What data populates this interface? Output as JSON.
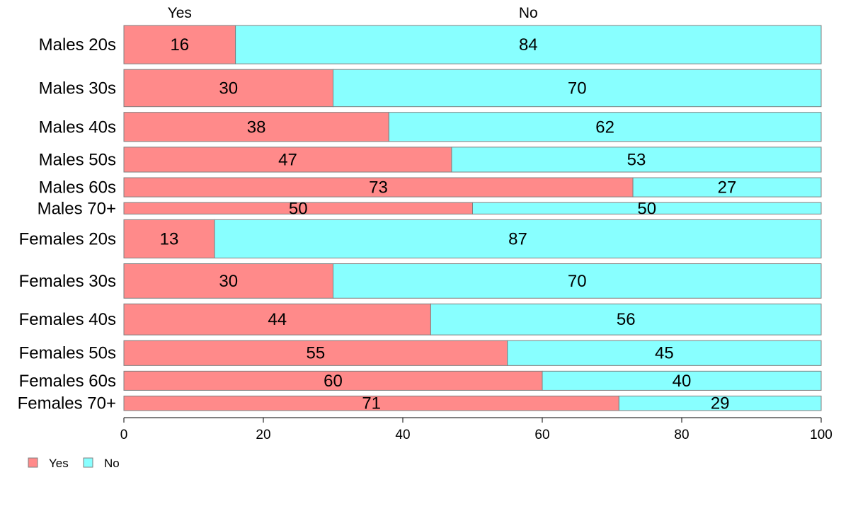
{
  "chart_data": {
    "type": "bar",
    "orientation": "horizontal",
    "stacked": true,
    "categories": [
      "Males 20s",
      "Males 30s",
      "Males 40s",
      "Males 50s",
      "Males 60s",
      "Males 70+",
      "Females 20s",
      "Females 30s",
      "Females 40s",
      "Females 50s",
      "Females 60s",
      "Females 70+"
    ],
    "series": [
      {
        "name": "Yes",
        "color": "#ff8a8a",
        "values": [
          16,
          30,
          38,
          47,
          73,
          50,
          13,
          30,
          44,
          55,
          60,
          71
        ]
      },
      {
        "name": "No",
        "color": "#88ffff",
        "values": [
          84,
          70,
          62,
          53,
          27,
          50,
          87,
          70,
          56,
          45,
          40,
          29
        ]
      }
    ],
    "relative_widths": [
      1.0,
      0.97,
      0.76,
      0.65,
      0.5,
      0.3,
      1.0,
      0.9,
      0.81,
      0.65,
      0.5,
      0.38
    ],
    "xlim": [
      0,
      100
    ],
    "xticks": [
      0,
      20,
      40,
      60,
      80,
      100
    ],
    "column_headers": [
      "Yes",
      "No"
    ],
    "legend": {
      "position": "bottom-left",
      "items": [
        "Yes",
        "No"
      ]
    },
    "grid": false,
    "title": "",
    "xlabel": "",
    "ylabel": ""
  }
}
